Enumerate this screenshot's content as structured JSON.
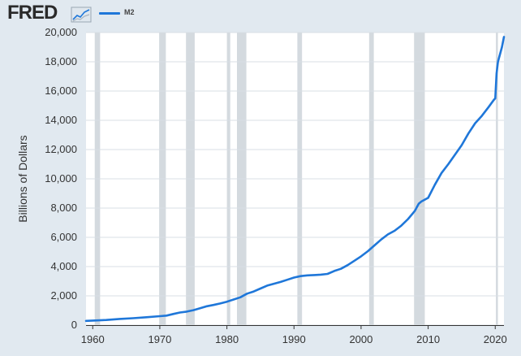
{
  "header": {
    "brand": "FRED",
    "brand_icon": "line-chart-icon"
  },
  "chart_data": {
    "type": "line",
    "title": "",
    "ylabel": "Billions of Dollars",
    "xlabel": "",
    "xlim": [
      1959,
      2021.3
    ],
    "ylim": [
      0,
      20000
    ],
    "x_ticks": [
      1960,
      1970,
      1980,
      1990,
      2000,
      2010,
      2020
    ],
    "x_tick_labels": [
      "1960",
      "1970",
      "1980",
      "1990",
      "2000",
      "2010",
      "2020"
    ],
    "y_ticks": [
      0,
      2000,
      4000,
      6000,
      8000,
      10000,
      12000,
      14000,
      16000,
      18000,
      20000
    ],
    "y_tick_labels": [
      "0",
      "2,000",
      "4,000",
      "6,000",
      "8,000",
      "10,000",
      "12,000",
      "14,000",
      "16,000",
      "18,000",
      "20,000"
    ],
    "grid": true,
    "legend": "top-left",
    "recessions": [
      [
        1960.3,
        1961.1
      ],
      [
        1969.9,
        1970.9
      ],
      [
        1973.9,
        1975.2
      ],
      [
        1980.0,
        1980.5
      ],
      [
        1981.5,
        1982.9
      ],
      [
        1990.5,
        1991.2
      ],
      [
        2001.2,
        2001.9
      ],
      [
        2007.9,
        2009.5
      ],
      [
        2020.1,
        2020.4
      ]
    ],
    "series": [
      {
        "name": "M2",
        "color": "#1f77d9",
        "x": [
          1959.0,
          1960,
          1962,
          1964,
          1966,
          1968,
          1970,
          1971,
          1972,
          1973,
          1974,
          1975,
          1976,
          1977,
          1978,
          1979,
          1980,
          1981,
          1982,
          1983,
          1984,
          1985,
          1986,
          1987,
          1988,
          1989,
          1990,
          1991,
          1992,
          1993,
          1994,
          1995,
          1996,
          1997,
          1998,
          1999,
          2000,
          2001,
          2002,
          2003,
          2004,
          2005,
          2006,
          2007,
          2008,
          2008.6,
          2009,
          2010,
          2011,
          2012,
          2013,
          2014,
          2015,
          2016,
          2017,
          2018,
          2019,
          2019.8,
          2020.0,
          2020.2,
          2020.4,
          2021.0,
          2021.3
        ],
        "values": [
          290,
          310,
          350,
          420,
          470,
          540,
          610,
          650,
          760,
          860,
          920,
          1020,
          1150,
          1290,
          1380,
          1480,
          1600,
          1750,
          1900,
          2150,
          2300,
          2500,
          2700,
          2830,
          2950,
          3100,
          3250,
          3350,
          3400,
          3420,
          3450,
          3500,
          3700,
          3850,
          4100,
          4400,
          4700,
          5050,
          5450,
          5850,
          6200,
          6450,
          6800,
          7250,
          7800,
          8300,
          8450,
          8700,
          9600,
          10400,
          11000,
          11650,
          12300,
          13100,
          13800,
          14300,
          14900,
          15400,
          15500,
          17200,
          18000,
          19000,
          19700
        ]
      }
    ]
  }
}
